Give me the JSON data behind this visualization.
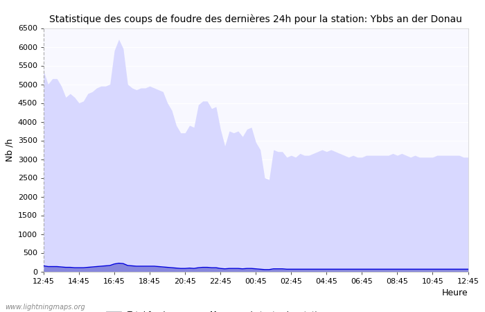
{
  "title": "Statistique des coups de foudre des dernières 24h pour la station: Ybbs an der Donau",
  "xlabel": "Heure",
  "ylabel": "Nb /h",
  "watermark": "www.lightningmaps.org",
  "x_ticks": [
    "12:45",
    "14:45",
    "16:45",
    "18:45",
    "20:45",
    "22:45",
    "00:45",
    "02:45",
    "04:45",
    "06:45",
    "08:45",
    "10:45",
    "12:45"
  ],
  "ylim": [
    0,
    6500
  ],
  "yticks": [
    0,
    500,
    1000,
    1500,
    2000,
    2500,
    3000,
    3500,
    4000,
    4500,
    5000,
    5500,
    6000,
    6500
  ],
  "bg_color": "#f8f8ff",
  "fill_total_color": "#d8d8ff",
  "fill_detected_color": "#8888dd",
  "line_mean_color": "#0000dd",
  "total_foudre": [
    5350,
    5000,
    5150,
    5150,
    4950,
    4650,
    4750,
    4650,
    4500,
    4550,
    4750,
    4800,
    4900,
    4950,
    4950,
    5000,
    5900,
    6200,
    5950,
    5000,
    4900,
    4850,
    4900,
    4900,
    4950,
    4900,
    4850,
    4800,
    4500,
    4300,
    3900,
    3700,
    3700,
    3900,
    3850,
    4450,
    4550,
    4550,
    4350,
    4400,
    3800,
    3350,
    3750,
    3700,
    3750,
    3600,
    3800,
    3850,
    3450,
    3250,
    2500,
    2450,
    3250,
    3200,
    3200,
    3050,
    3100,
    3050,
    3150,
    3100,
    3100,
    3150,
    3200,
    3250,
    3200,
    3250,
    3200,
    3150,
    3100,
    3050,
    3100,
    3050,
    3050,
    3100,
    3100,
    3100,
    3100,
    3100,
    3100,
    3150,
    3100,
    3150,
    3100,
    3050,
    3100,
    3050,
    3050,
    3050,
    3050,
    3100,
    3100,
    3100,
    3100,
    3100,
    3100,
    3050,
    3050
  ],
  "local_detected": [
    150,
    130,
    130,
    130,
    120,
    110,
    110,
    100,
    100,
    100,
    110,
    120,
    130,
    140,
    150,
    160,
    200,
    220,
    210,
    160,
    150,
    140,
    140,
    140,
    140,
    140,
    130,
    120,
    110,
    100,
    90,
    80,
    80,
    90,
    80,
    100,
    110,
    110,
    100,
    100,
    80,
    70,
    80,
    80,
    80,
    70,
    80,
    80,
    70,
    60,
    50,
    50,
    70,
    70,
    70,
    60,
    60,
    60,
    60,
    60,
    60,
    60,
    60,
    60,
    60,
    60,
    60,
    60,
    60,
    60,
    60,
    60,
    60,
    60,
    60,
    60,
    60,
    60,
    60,
    60,
    60,
    60,
    60,
    60,
    60,
    60,
    60,
    60,
    60,
    60,
    60,
    60,
    60,
    60,
    60,
    60,
    60
  ],
  "mean_stations": [
    150,
    130,
    130,
    130,
    120,
    110,
    110,
    100,
    100,
    100,
    110,
    120,
    130,
    140,
    150,
    160,
    200,
    220,
    210,
    160,
    150,
    140,
    140,
    140,
    140,
    140,
    130,
    120,
    110,
    100,
    90,
    80,
    80,
    90,
    80,
    100,
    110,
    110,
    100,
    100,
    80,
    70,
    80,
    80,
    80,
    70,
    80,
    80,
    70,
    60,
    50,
    50,
    70,
    70,
    70,
    60,
    60,
    60,
    60,
    60,
    60,
    60,
    60,
    60,
    60,
    60,
    60,
    60,
    60,
    60,
    60,
    60,
    60,
    60,
    60,
    60,
    60,
    60,
    60,
    60,
    60,
    60,
    60,
    60,
    60,
    60,
    60,
    60,
    60,
    60,
    60,
    60,
    60,
    60,
    60,
    60,
    60
  ],
  "title_fontsize": 10,
  "tick_fontsize": 8,
  "legend_fontsize": 8,
  "label_fontsize": 9
}
